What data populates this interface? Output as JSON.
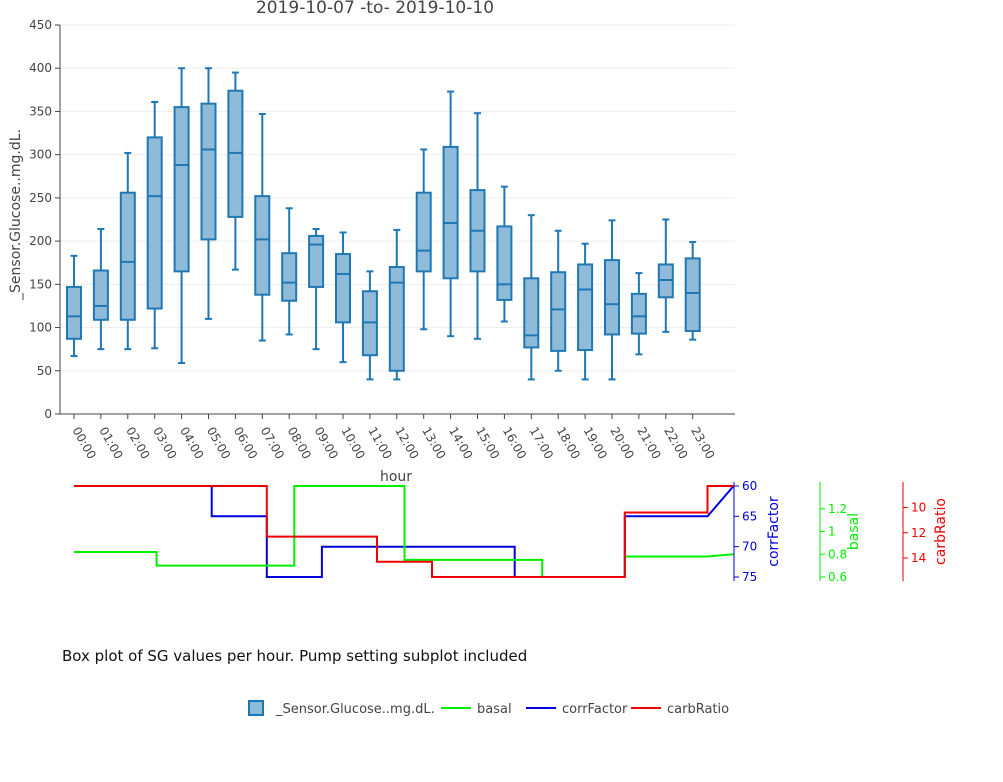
{
  "chart_data": [
    {
      "type": "box",
      "title": "2019-10-07 -to- 2019-10-10",
      "xlabel": "hour",
      "ylabel": "_Sensor.Glucose..mg.dL.",
      "ylim": [
        0,
        450
      ],
      "yticks": [
        0,
        50,
        100,
        150,
        200,
        250,
        300,
        350,
        400,
        450
      ],
      "categories": [
        "00:00",
        "01:00",
        "02:00",
        "03:00",
        "04:00",
        "05:00",
        "06:00",
        "07:00",
        "08:00",
        "09:00",
        "10:00",
        "11:00",
        "12:00",
        "13:00",
        "14:00",
        "15:00",
        "16:00",
        "17:00",
        "18:00",
        "19:00",
        "20:00",
        "21:00",
        "22:00",
        "23:00"
      ],
      "series": [
        {
          "name": "_Sensor.Glucose..mg.dL.",
          "color": "#1f77b4",
          "fill": "#8fbbd9",
          "boxes": [
            {
              "min": 67,
              "q1": 87,
              "median": 113,
              "q3": 147,
              "max": 183
            },
            {
              "min": 75,
              "q1": 109,
              "median": 125,
              "q3": 166,
              "max": 214
            },
            {
              "min": 75,
              "q1": 109,
              "median": 176,
              "q3": 256,
              "max": 302
            },
            {
              "min": 76,
              "q1": 122,
              "median": 252,
              "q3": 320,
              "max": 361
            },
            {
              "min": 59,
              "q1": 165,
              "median": 288,
              "q3": 355,
              "max": 400
            },
            {
              "min": 110,
              "q1": 202,
              "median": 306,
              "q3": 359,
              "max": 400
            },
            {
              "min": 167,
              "q1": 228,
              "median": 302,
              "q3": 374,
              "max": 395
            },
            {
              "min": 85,
              "q1": 138,
              "median": 202,
              "q3": 252,
              "max": 347
            },
            {
              "min": 92,
              "q1": 131,
              "median": 152,
              "q3": 186,
              "max": 238
            },
            {
              "min": 75,
              "q1": 147,
              "median": 196,
              "q3": 206,
              "max": 214
            },
            {
              "min": 60,
              "q1": 106,
              "median": 162,
              "q3": 185,
              "max": 210
            },
            {
              "min": 40,
              "q1": 68,
              "median": 106,
              "q3": 142,
              "max": 165
            },
            {
              "min": 40,
              "q1": 50,
              "median": 152,
              "q3": 170,
              "max": 213
            },
            {
              "min": 98,
              "q1": 165,
              "median": 189,
              "q3": 256,
              "max": 306
            },
            {
              "min": 90,
              "q1": 157,
              "median": 221,
              "q3": 309,
              "max": 373
            },
            {
              "min": 87,
              "q1": 165,
              "median": 212,
              "q3": 259,
              "max": 348
            },
            {
              "min": 107,
              "q1": 132,
              "median": 150,
              "q3": 217,
              "max": 263
            },
            {
              "min": 40,
              "q1": 77,
              "median": 91,
              "q3": 157,
              "max": 230
            },
            {
              "min": 50,
              "q1": 73,
              "median": 121,
              "q3": 164,
              "max": 212
            },
            {
              "min": 40,
              "q1": 74,
              "median": 144,
              "q3": 173,
              "max": 197
            },
            {
              "min": 40,
              "q1": 92,
              "median": 127,
              "q3": 178,
              "max": 224
            },
            {
              "min": 69,
              "q1": 93,
              "median": 113,
              "q3": 139,
              "max": 163
            },
            {
              "min": 95,
              "q1": 135,
              "median": 155,
              "q3": 173,
              "max": 225
            },
            {
              "min": 86,
              "q1": 96,
              "median": 140,
              "q3": 180,
              "max": 199
            }
          ]
        }
      ]
    },
    {
      "type": "line",
      "xlabel": "",
      "x_range": [
        0,
        24
      ],
      "series": [
        {
          "name": "corrFactor",
          "color": "#0000dd",
          "axis_title": "corrFactor",
          "axis_reversed": true,
          "ylim": [
            60,
            75
          ],
          "yticks": [
            60,
            65,
            70,
            75
          ],
          "points": [
            [
              0,
              60
            ],
            [
              5,
              60
            ],
            [
              5,
              65
            ],
            [
              7,
              65
            ],
            [
              7,
              75
            ],
            [
              9,
              75
            ],
            [
              9,
              70
            ],
            [
              16,
              70
            ],
            [
              16,
              75
            ],
            [
              20,
              75
            ],
            [
              20,
              65
            ],
            [
              23,
              65
            ],
            [
              23.95,
              60
            ]
          ]
        },
        {
          "name": "basal",
          "color": "#00ee00",
          "axis_title": "basal",
          "axis_reversed": false,
          "ylim": [
            0.6,
            1.4
          ],
          "yticks": [
            0.6,
            0.8,
            1,
            1.2
          ],
          "points": [
            [
              0,
              0.82
            ],
            [
              3,
              0.82
            ],
            [
              3,
              0.7
            ],
            [
              8,
              0.7
            ],
            [
              8,
              1.4
            ],
            [
              12,
              1.4
            ],
            [
              12,
              0.75
            ],
            [
              17,
              0.75
            ],
            [
              17,
              0.6
            ],
            [
              20,
              0.6
            ],
            [
              20,
              0.78
            ],
            [
              23,
              0.78
            ],
            [
              23.95,
              0.8
            ]
          ]
        },
        {
          "name": "carbRatio",
          "color": "#ee0000",
          "axis_title": "carbRatio",
          "axis_reversed": true,
          "ylim": [
            8.3,
            15.5
          ],
          "yticks": [
            10,
            12,
            14
          ],
          "points": [
            [
              0,
              8.3
            ],
            [
              7,
              8.3
            ],
            [
              7,
              12.3
            ],
            [
              11,
              12.3
            ],
            [
              11,
              14.3
            ],
            [
              13,
              14.3
            ],
            [
              13,
              15.5
            ],
            [
              20,
              15.5
            ],
            [
              20,
              10.4
            ],
            [
              23,
              10.4
            ],
            [
              23,
              8.3
            ],
            [
              23.95,
              8.3
            ]
          ]
        }
      ]
    }
  ],
  "caption": "Box plot of SG values per hour. Pump setting subplot included",
  "legend": [
    {
      "name": "_Sensor.Glucose..mg.dL.",
      "type": "box",
      "color": "#1f77b4"
    },
    {
      "name": "basal",
      "type": "line",
      "color": "#00ee00"
    },
    {
      "name": "corrFactor",
      "type": "line",
      "color": "#0000dd"
    },
    {
      "name": "carbRatio",
      "type": "line",
      "color": "#ee0000"
    }
  ]
}
